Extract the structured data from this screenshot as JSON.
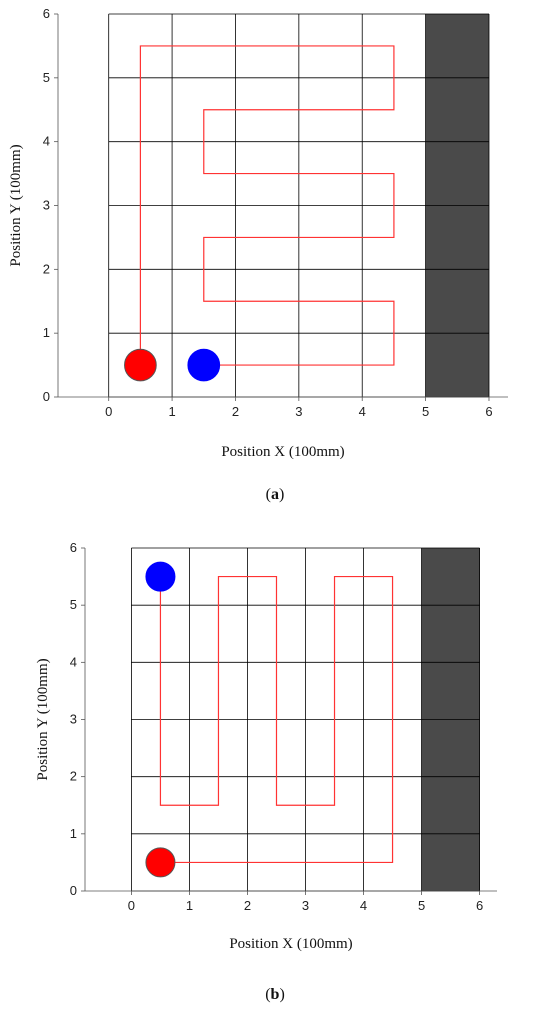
{
  "figure": {
    "captions": [
      "(a)",
      "(b)"
    ]
  },
  "colors": {
    "grid": "#000000",
    "path": "#ff3333",
    "obstacle": "#4a4a4a",
    "start_marker": "#ff0000",
    "end_marker": "#0000ff",
    "marker_outline": "#555555"
  },
  "chart_data": [
    {
      "type": "line",
      "label": "(a)",
      "xlabel": "Position X (100mm)",
      "ylabel": "Position Y (100mm)",
      "xlim": [
        -0.8,
        6.3
      ],
      "ylim": [
        0,
        6
      ],
      "xticks": [
        0,
        1,
        2,
        3,
        4,
        5,
        6
      ],
      "yticks": [
        0,
        1,
        2,
        3,
        4,
        5,
        6
      ],
      "grid": true,
      "grid_x_range": [
        0,
        6
      ],
      "obstacle": {
        "x": [
          5,
          6
        ],
        "y": [
          0,
          6
        ]
      },
      "path": {
        "x": [
          0.5,
          0.5,
          4.5,
          4.5,
          1.5,
          1.5,
          4.5,
          4.5,
          1.5,
          1.5,
          4.5,
          4.5,
          1.5
        ],
        "y": [
          0.5,
          5.5,
          5.5,
          4.5,
          4.5,
          3.5,
          3.5,
          2.5,
          2.5,
          1.5,
          1.5,
          0.5,
          0.5
        ]
      },
      "markers": [
        {
          "name": "start",
          "x": 0.5,
          "y": 0.5,
          "color": "#ff0000"
        },
        {
          "name": "end",
          "x": 1.5,
          "y": 0.5,
          "color": "#0000ff"
        }
      ]
    },
    {
      "type": "line",
      "label": "(b)",
      "xlabel": "Position X (100mm)",
      "ylabel": "Position Y (100mm)",
      "xlim": [
        -0.8,
        6.3
      ],
      "ylim": [
        0,
        6
      ],
      "xticks": [
        0,
        1,
        2,
        3,
        4,
        5,
        6
      ],
      "yticks": [
        0,
        1,
        2,
        3,
        4,
        5,
        6
      ],
      "grid": true,
      "grid_x_range": [
        0,
        6
      ],
      "obstacle": {
        "x": [
          5,
          6
        ],
        "y": [
          0,
          6
        ]
      },
      "path": {
        "x": [
          0.5,
          4.5,
          4.5,
          3.5,
          3.5,
          2.5,
          2.5,
          1.5,
          1.5,
          0.5,
          0.5
        ],
        "y": [
          0.5,
          0.5,
          5.5,
          5.5,
          1.5,
          1.5,
          5.5,
          5.5,
          1.5,
          1.5,
          5.5
        ]
      },
      "markers": [
        {
          "name": "start",
          "x": 0.5,
          "y": 0.5,
          "color": "#ff0000"
        },
        {
          "name": "end",
          "x": 0.5,
          "y": 5.5,
          "color": "#0000ff"
        }
      ]
    }
  ]
}
